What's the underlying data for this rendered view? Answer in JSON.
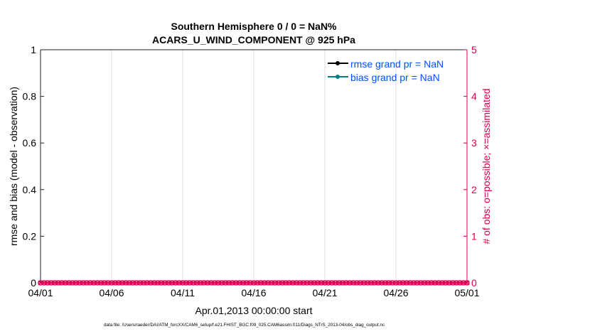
{
  "chart_data": {
    "type": "line",
    "title": [
      "Southern Hemisphere 0 / 0 = NaN%",
      "ACARS_U_WIND_COMPONENT @ 925 hPa"
    ],
    "xlabel": "Apr.01,2013 00:00:00 start",
    "ylabel": "rmse and bias (model - observation)",
    "ylabel_right": "# of obs: o=possible; ×=assimilated",
    "xlim": [
      "2013-04-01",
      "2013-05-01"
    ],
    "ylim": [
      0,
      1
    ],
    "ylim_right": [
      0,
      5
    ],
    "x_ticks": [
      "04/01",
      "04/06",
      "04/11",
      "04/16",
      "04/21",
      "04/26",
      "05/01"
    ],
    "y_ticks": [
      "0",
      "0.2",
      "0.4",
      "0.6",
      "0.8",
      "1"
    ],
    "y_ticks_right": [
      "0",
      "1",
      "2",
      "3",
      "4",
      "5"
    ],
    "grid": "vertical",
    "legend_position": "top-right",
    "series": [
      {
        "name": "rmse grand pr = NaN",
        "color": "#000000",
        "values": []
      },
      {
        "name": "bias grand pr = NaN",
        "color": "#008080",
        "values": []
      },
      {
        "axis": "right",
        "marker": "o",
        "color": "#e0005a",
        "interval_hours": 6,
        "value": 0
      },
      {
        "axis": "right",
        "marker": "x",
        "color": "#e0005a",
        "interval_hours": 6,
        "value": 0
      }
    ],
    "colors": {
      "right_axis": "#d6004c",
      "legend_text": "#0050ff"
    }
  },
  "footer": "data file: /Users/raeder/DAI/ATM_forcXX/CAM6_setup/f.e21.FHIST_BGC.f09_025.CAM6assim.011/Diags_NTrS_2013-04/obs_diag_output.nc"
}
